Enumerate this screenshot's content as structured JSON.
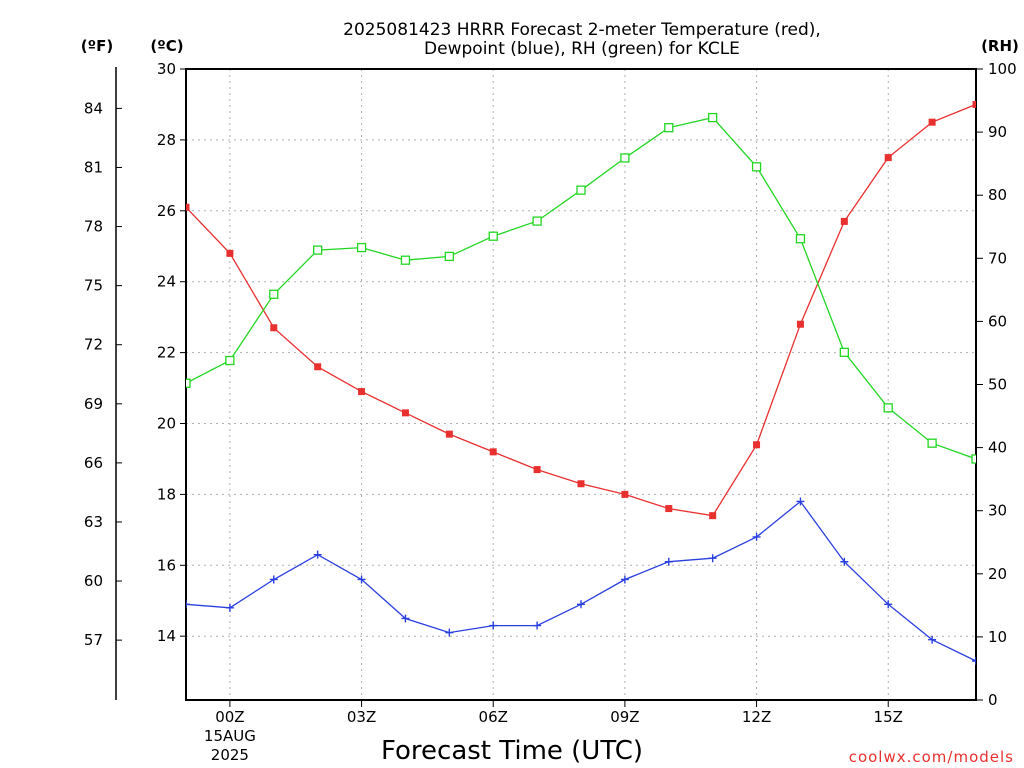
{
  "chart_data": {
    "type": "line",
    "title_lines": [
      "2025081423 HRRR Forecast 2-meter Temperature (red),",
      "Dewpoint (blue), RH (green) for KCLE"
    ],
    "unit_labels": {
      "fahrenheit": "(ºF)",
      "celsius": "(ºC)",
      "rh": "(RH)"
    },
    "xlabel": "Forecast Time (UTC)",
    "credit": "coolwx.com/models",
    "x_hours": [
      -1,
      0,
      1,
      2,
      3,
      4,
      5,
      6,
      7,
      8,
      9,
      10,
      11,
      12,
      13,
      14,
      15,
      16,
      17
    ],
    "xlim": [
      -1,
      17
    ],
    "x_ticks": [
      {
        "hour": 0,
        "label": "00Z",
        "sub1": "15AUG",
        "sub2": "2025"
      },
      {
        "hour": 3,
        "label": "03Z"
      },
      {
        "hour": 6,
        "label": "06Z"
      },
      {
        "hour": 9,
        "label": "09Z"
      },
      {
        "hour": 12,
        "label": "12Z"
      },
      {
        "hour": 15,
        "label": "15Z"
      }
    ],
    "y_left_celsius": {
      "lim": [
        12.2,
        30
      ],
      "ticks": [
        "14",
        "16",
        "18",
        "20",
        "22",
        "24",
        "26",
        "28",
        "30"
      ]
    },
    "y_left_fahrenheit": {
      "ticks": [
        "57",
        "60",
        "63",
        "66",
        "69",
        "72",
        "75",
        "78",
        "81",
        "84"
      ]
    },
    "y_right_rh": {
      "lim": [
        0,
        100
      ],
      "ticks": [
        "0",
        "10",
        "20",
        "30",
        "40",
        "50",
        "60",
        "70",
        "80",
        "90",
        "100"
      ]
    },
    "grid": true,
    "series": [
      {
        "name": "Temperature (red)",
        "axis": "celsius",
        "color": "#e8302f",
        "marker": "filled-square",
        "values": [
          26.1,
          24.8,
          22.7,
          21.6,
          20.9,
          20.3,
          19.7,
          19.2,
          18.7,
          18.3,
          18.0,
          17.6,
          17.4,
          19.4,
          22.8,
          25.7,
          27.5,
          28.5,
          29.0
        ]
      },
      {
        "name": "Dewpoint (blue)",
        "axis": "celsius",
        "color": "#2a3fe0",
        "marker": "plus",
        "values": [
          14.9,
          14.8,
          15.6,
          16.3,
          15.6,
          14.5,
          14.1,
          14.3,
          14.3,
          14.9,
          15.6,
          16.1,
          16.2,
          16.8,
          17.8,
          16.1,
          14.9,
          13.9,
          13.3
        ]
      },
      {
        "name": "RH (green)",
        "axis": "rh",
        "color": "#22d622",
        "marker": "open-square",
        "values": [
          50.2,
          53.8,
          64.3,
          71.3,
          71.7,
          69.7,
          70.3,
          73.5,
          75.9,
          80.8,
          85.9,
          90.7,
          92.3,
          84.5,
          73.1,
          55.1,
          46.3,
          40.7,
          38.2
        ]
      }
    ]
  }
}
